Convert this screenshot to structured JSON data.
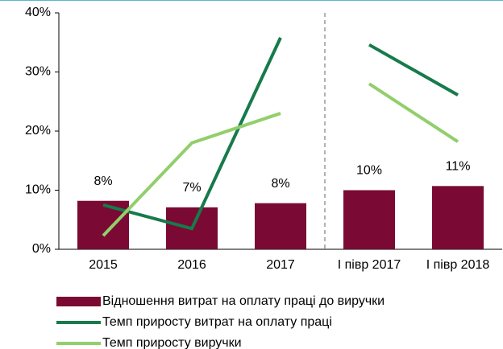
{
  "chart_data": {
    "type": "bar_line",
    "categories": [
      "2015",
      "2016",
      "2017",
      "I півр 2017",
      "I півр 2018"
    ],
    "series": [
      {
        "name": "Відношення витрат на оплату праці до виручки",
        "type": "bar",
        "color": "#7a0a33",
        "values": [
          8.2,
          7.1,
          7.8,
          10.0,
          10.7
        ],
        "value_labels": [
          "8%",
          "7%",
          "8%",
          "10%",
          "11%"
        ]
      },
      {
        "name": "Темп приросту витрат на оплату праці",
        "type": "line",
        "color": "#177a4b",
        "values": [
          7.5,
          3.5,
          35.8,
          34.6,
          26.1
        ]
      },
      {
        "name": "Темп приросту виручки",
        "type": "line",
        "color": "#92cf6c",
        "values": [
          2.3,
          18.0,
          23.0,
          28.0,
          18.2
        ]
      }
    ],
    "divider_after": 2,
    "ylim": [
      0,
      40
    ],
    "yticks": [
      {
        "value": 0,
        "label": "0%"
      },
      {
        "value": 10,
        "label": "10%"
      },
      {
        "value": 20,
        "label": "20%"
      },
      {
        "value": 30,
        "label": "30%"
      },
      {
        "value": 40,
        "label": "40%"
      }
    ]
  }
}
